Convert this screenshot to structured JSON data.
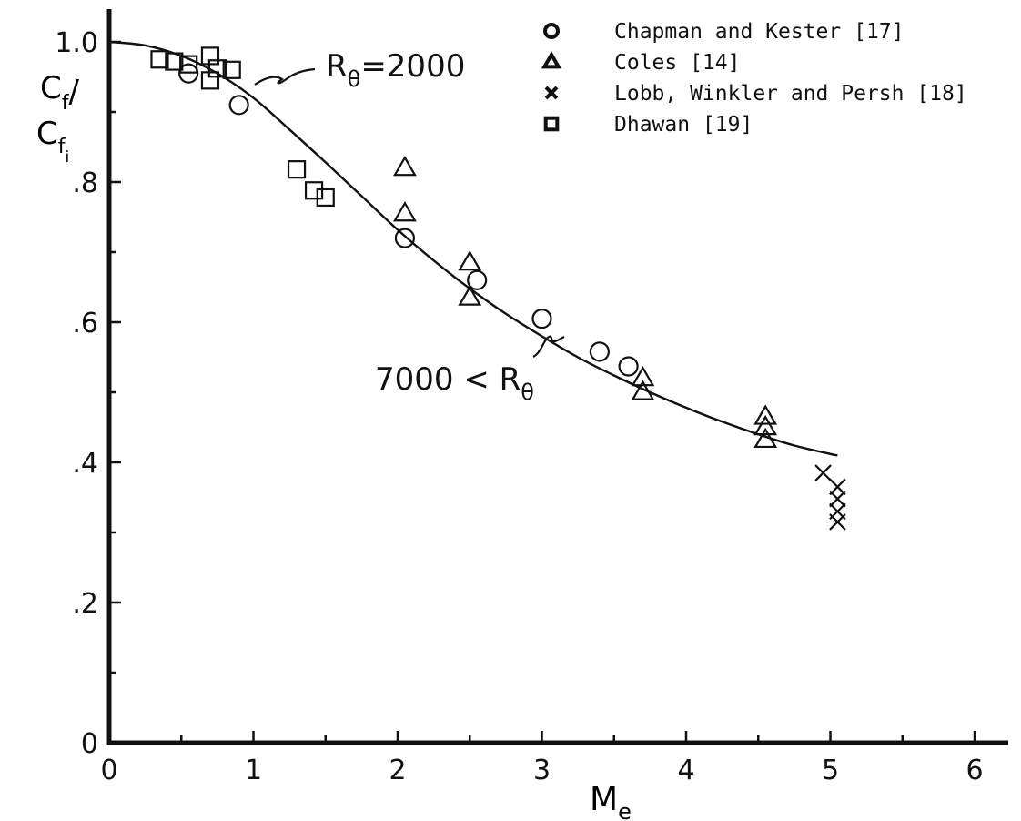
{
  "chart_data": {
    "type": "scatter",
    "xlabel": "M",
    "xlabel_sub": "e",
    "ylabel_num": "C",
    "ylabel_num_sub": "f",
    "ylabel_slash": "/",
    "ylabel_den": "C",
    "ylabel_den_sub": "f",
    "ylabel_den_subsub": "i",
    "xlim": [
      0,
      6.2
    ],
    "ylim": [
      0,
      1.05
    ],
    "grid": false,
    "legend_position": "top-right",
    "x_ticks": [
      {
        "value": 0,
        "label": "0"
      },
      {
        "value": 1,
        "label": "1"
      },
      {
        "value": 2,
        "label": "2"
      },
      {
        "value": 3,
        "label": "3"
      },
      {
        "value": 4,
        "label": "4"
      },
      {
        "value": 5,
        "label": "5"
      },
      {
        "value": 6,
        "label": "6"
      }
    ],
    "x_minor_ticks": [
      0.5,
      1.5,
      2.5,
      3.5,
      4.5,
      5.5
    ],
    "y_ticks": [
      {
        "value": 0,
        "label": "0"
      },
      {
        "value": 0.2,
        "label": ".2"
      },
      {
        "value": 0.4,
        "label": ".4"
      },
      {
        "value": 0.6,
        "label": ".6"
      },
      {
        "value": 0.8,
        "label": ".8"
      },
      {
        "value": 1.0,
        "label": "1.0"
      }
    ],
    "y_minor_ticks": [
      0.1,
      0.3,
      0.5,
      0.7,
      0.9
    ],
    "curve": {
      "x": [
        0,
        0.25,
        0.5,
        0.75,
        1.0,
        1.25,
        1.5,
        1.75,
        2.0,
        2.25,
        2.5,
        2.75,
        3.0,
        3.25,
        3.5,
        3.75,
        4.0,
        4.25,
        4.5,
        4.75,
        5.0,
        5.05
      ],
      "y": [
        1.0,
        0.995,
        0.98,
        0.955,
        0.92,
        0.875,
        0.828,
        0.78,
        0.732,
        0.688,
        0.648,
        0.612,
        0.58,
        0.55,
        0.524,
        0.5,
        0.478,
        0.458,
        0.44,
        0.424,
        0.412,
        0.41
      ]
    },
    "series": [
      {
        "name": "Chapman and Kester [17]",
        "marker": "circle",
        "points": [
          [
            0.55,
            0.955
          ],
          [
            0.9,
            0.91
          ],
          [
            2.05,
            0.72
          ],
          [
            2.55,
            0.66
          ],
          [
            3.0,
            0.605
          ],
          [
            3.4,
            0.558
          ],
          [
            3.6,
            0.537
          ]
        ]
      },
      {
        "name": "Coles [14]",
        "marker": "triangle",
        "points": [
          [
            2.05,
            0.82
          ],
          [
            2.05,
            0.755
          ],
          [
            2.5,
            0.685
          ],
          [
            2.5,
            0.635
          ],
          [
            3.7,
            0.52
          ],
          [
            3.7,
            0.5
          ],
          [
            4.55,
            0.465
          ],
          [
            4.55,
            0.45
          ],
          [
            4.55,
            0.432
          ]
        ]
      },
      {
        "name": "Lobb, Winkler and Persh [18]",
        "marker": "x",
        "points": [
          [
            4.95,
            0.385
          ],
          [
            5.05,
            0.365
          ],
          [
            5.05,
            0.348
          ],
          [
            5.05,
            0.33
          ],
          [
            5.05,
            0.315
          ]
        ]
      },
      {
        "name": "Dhawan [19]",
        "marker": "square",
        "points": [
          [
            0.35,
            0.975
          ],
          [
            0.45,
            0.972
          ],
          [
            0.55,
            0.968
          ],
          [
            0.7,
            0.98
          ],
          [
            0.75,
            0.962
          ],
          [
            0.7,
            0.945
          ],
          [
            0.85,
            0.96
          ],
          [
            1.3,
            0.818
          ],
          [
            1.42,
            0.788
          ],
          [
            1.5,
            0.778
          ]
        ]
      }
    ],
    "annotations": [
      {
        "id": "low",
        "text": "R",
        "sub": "θ",
        "suffix": "=2000",
        "x": 1.0,
        "y": 0.935
      },
      {
        "id": "high",
        "prefix": "7000 < R",
        "sub": "θ",
        "x": 3.2,
        "y": 0.57
      }
    ]
  }
}
